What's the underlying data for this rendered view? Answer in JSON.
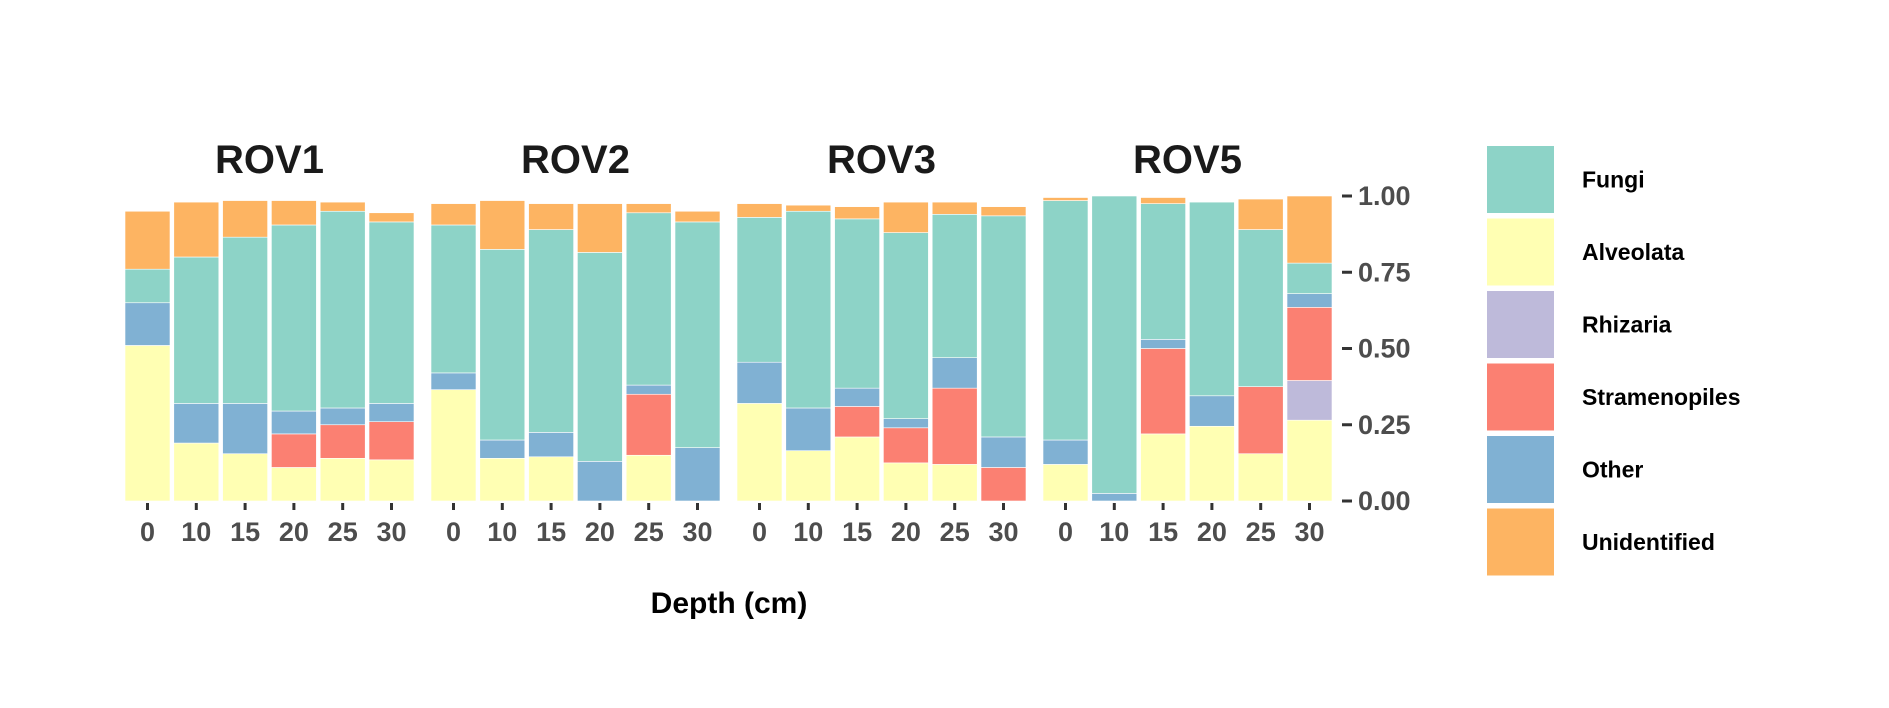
{
  "chart_data": {
    "type": "bar",
    "stacked": true,
    "xlabel": "Depth (cm)",
    "ylabel": "",
    "ylim": [
      0,
      1
    ],
    "y_ticks": [
      "0.00",
      "0.25",
      "0.50",
      "0.75",
      "1.00"
    ],
    "y_tick_values": [
      0,
      0.25,
      0.5,
      0.75,
      1.0
    ],
    "y_axis_position": "right",
    "grid": false,
    "legend_position": "right",
    "categories": [
      "0",
      "10",
      "15",
      "20",
      "25",
      "30"
    ],
    "stack_order": [
      "Alveolata",
      "Rhizaria",
      "Stramenopiles",
      "Other",
      "Fungi",
      "Unidentified"
    ],
    "legend": [
      {
        "name": "Fungi",
        "color": "#8dd3c7"
      },
      {
        "name": "Alveolata",
        "color": "#ffffb3"
      },
      {
        "name": "Rhizaria",
        "color": "#bebada"
      },
      {
        "name": "Stramenopiles",
        "color": "#fb8072"
      },
      {
        "name": "Other",
        "color": "#80b1d3"
      },
      {
        "name": "Unidentified",
        "color": "#fdb462"
      }
    ],
    "facets": [
      {
        "title": "ROV1",
        "bars": [
          {
            "Alveolata": 0.51,
            "Rhizaria": 0,
            "Stramenopiles": 0,
            "Other": 0.14,
            "Fungi": 0.11,
            "Unidentified": 0.19
          },
          {
            "Alveolata": 0.19,
            "Rhizaria": 0,
            "Stramenopiles": 0,
            "Other": 0.13,
            "Fungi": 0.48,
            "Unidentified": 0.18
          },
          {
            "Alveolata": 0.155,
            "Rhizaria": 0,
            "Stramenopiles": 0,
            "Other": 0.165,
            "Fungi": 0.545,
            "Unidentified": 0.12
          },
          {
            "Alveolata": 0.11,
            "Rhizaria": 0,
            "Stramenopiles": 0.11,
            "Other": 0.075,
            "Fungi": 0.61,
            "Unidentified": 0.08
          },
          {
            "Alveolata": 0.14,
            "Rhizaria": 0,
            "Stramenopiles": 0.11,
            "Other": 0.055,
            "Fungi": 0.645,
            "Unidentified": 0.03
          },
          {
            "Alveolata": 0.135,
            "Rhizaria": 0,
            "Stramenopiles": 0.125,
            "Other": 0.06,
            "Fungi": 0.595,
            "Unidentified": 0.03
          }
        ]
      },
      {
        "title": "ROV2",
        "bars": [
          {
            "Alveolata": 0.365,
            "Rhizaria": 0,
            "Stramenopiles": 0,
            "Other": 0.055,
            "Fungi": 0.485,
            "Unidentified": 0.07
          },
          {
            "Alveolata": 0.14,
            "Rhizaria": 0,
            "Stramenopiles": 0,
            "Other": 0.06,
            "Fungi": 0.625,
            "Unidentified": 0.16
          },
          {
            "Alveolata": 0.145,
            "Rhizaria": 0,
            "Stramenopiles": 0,
            "Other": 0.08,
            "Fungi": 0.665,
            "Unidentified": 0.085
          },
          {
            "Alveolata": 0,
            "Rhizaria": 0,
            "Stramenopiles": 0,
            "Other": 0.13,
            "Fungi": 0.685,
            "Unidentified": 0.16
          },
          {
            "Alveolata": 0.15,
            "Rhizaria": 0,
            "Stramenopiles": 0.2,
            "Other": 0.03,
            "Fungi": 0.565,
            "Unidentified": 0.03
          },
          {
            "Alveolata": 0,
            "Rhizaria": 0,
            "Stramenopiles": 0,
            "Other": 0.175,
            "Fungi": 0.74,
            "Unidentified": 0.035
          }
        ]
      },
      {
        "title": "ROV3",
        "bars": [
          {
            "Alveolata": 0.32,
            "Rhizaria": 0,
            "Stramenopiles": 0,
            "Other": 0.135,
            "Fungi": 0.475,
            "Unidentified": 0.045
          },
          {
            "Alveolata": 0.165,
            "Rhizaria": 0,
            "Stramenopiles": 0,
            "Other": 0.14,
            "Fungi": 0.645,
            "Unidentified": 0.02
          },
          {
            "Alveolata": 0.21,
            "Rhizaria": 0,
            "Stramenopiles": 0.1,
            "Other": 0.06,
            "Fungi": 0.555,
            "Unidentified": 0.04
          },
          {
            "Alveolata": 0.125,
            "Rhizaria": 0,
            "Stramenopiles": 0.115,
            "Other": 0.03,
            "Fungi": 0.61,
            "Unidentified": 0.1
          },
          {
            "Alveolata": 0.12,
            "Rhizaria": 0,
            "Stramenopiles": 0.25,
            "Other": 0.1,
            "Fungi": 0.47,
            "Unidentified": 0.04
          },
          {
            "Alveolata": 0,
            "Rhizaria": 0,
            "Stramenopiles": 0.11,
            "Other": 0.1,
            "Fungi": 0.725,
            "Unidentified": 0.03
          }
        ]
      },
      {
        "title": "ROV5",
        "bars": [
          {
            "Alveolata": 0.12,
            "Rhizaria": 0,
            "Stramenopiles": 0,
            "Other": 0.08,
            "Fungi": 0.785,
            "Unidentified": 0.01
          },
          {
            "Alveolata": 0,
            "Rhizaria": 0,
            "Stramenopiles": 0,
            "Other": 0.025,
            "Fungi": 0.975,
            "Unidentified": 0
          },
          {
            "Alveolata": 0.22,
            "Rhizaria": 0,
            "Stramenopiles": 0.28,
            "Other": 0.03,
            "Fungi": 0.445,
            "Unidentified": 0.02
          },
          {
            "Alveolata": 0.245,
            "Rhizaria": 0,
            "Stramenopiles": 0,
            "Other": 0.1,
            "Fungi": 0.635,
            "Unidentified": 0
          },
          {
            "Alveolata": 0.155,
            "Rhizaria": 0,
            "Stramenopiles": 0.22,
            "Other": 0,
            "Fungi": 0.515,
            "Unidentified": 0.1
          },
          {
            "Alveolata": 0.265,
            "Rhizaria": 0.13,
            "Stramenopiles": 0.24,
            "Other": 0.045,
            "Fungi": 0.1,
            "Unidentified": 0.22
          }
        ]
      }
    ]
  }
}
